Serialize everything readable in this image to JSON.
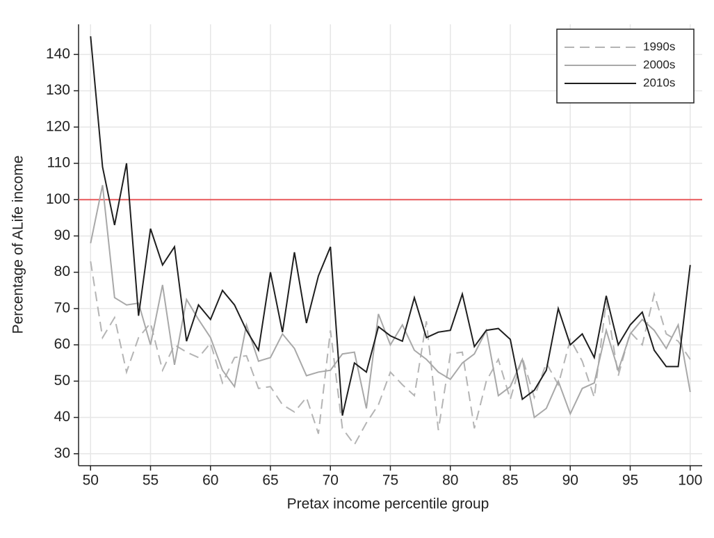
{
  "chart_data": {
    "type": "line",
    "xlabel": "Pretax income percentile group",
    "ylabel": "Percentage of ALife income",
    "x": [
      50,
      51,
      52,
      53,
      54,
      55,
      56,
      57,
      58,
      59,
      60,
      61,
      62,
      63,
      64,
      65,
      66,
      67,
      68,
      69,
      70,
      71,
      72,
      73,
      74,
      75,
      76,
      77,
      78,
      79,
      80,
      81,
      82,
      83,
      84,
      85,
      86,
      87,
      88,
      89,
      90,
      91,
      92,
      93,
      94,
      95,
      96,
      97,
      98,
      99,
      100
    ],
    "series": [
      {
        "name": "1990s",
        "color": "#b4b4b4",
        "style": "dashed",
        "values": [
          83,
          62,
          67.5,
          52.5,
          62,
          66,
          53,
          60,
          58,
          56.5,
          60.5,
          49.5,
          56.5,
          57,
          48,
          48.5,
          43.5,
          41.5,
          45.5,
          35.5,
          64,
          37,
          32.5,
          38.5,
          43.5,
          52.5,
          49,
          46,
          66.5,
          36.5,
          57.5,
          58,
          37,
          50,
          56,
          45,
          56.5,
          45.5,
          55,
          49,
          61.5,
          55.5,
          45.5,
          72,
          51.5,
          63.5,
          60,
          74,
          63,
          61,
          56
        ]
      },
      {
        "name": "2000s",
        "color": "#a8a8a8",
        "style": "solid",
        "values": [
          88,
          104,
          73,
          71,
          71.5,
          60,
          76.5,
          54.5,
          72.5,
          67,
          62,
          53,
          48.5,
          65.5,
          55.5,
          56.5,
          63,
          59,
          51.5,
          52.5,
          53,
          57.5,
          58,
          42.5,
          68.5,
          60,
          65.5,
          58.5,
          56,
          52.5,
          50.5,
          55,
          57.5,
          64,
          46,
          48.5,
          56,
          40,
          42.5,
          50,
          41,
          48,
          49.5,
          64,
          53,
          63,
          67,
          64,
          59,
          65.5,
          47
        ]
      },
      {
        "name": "2010s",
        "color": "#1e1e1e",
        "style": "solid",
        "values": [
          145,
          109,
          93,
          110,
          68,
          92,
          82,
          87,
          61,
          71,
          67,
          75,
          71,
          64,
          58.5,
          80,
          63.5,
          85.5,
          66,
          79,
          87,
          40.5,
          55,
          52.5,
          65,
          62.5,
          61,
          73,
          62,
          63.5,
          64,
          74,
          59.5,
          64,
          64.5,
          61.5,
          45,
          47.5,
          53,
          70,
          60,
          63,
          56.5,
          73.5,
          60,
          65.5,
          69,
          58.5,
          54,
          54,
          82
        ]
      }
    ],
    "xlim": [
      49,
      101
    ],
    "ylim": [
      26.7,
      148.3
    ],
    "xticks": [
      50,
      55,
      60,
      65,
      70,
      75,
      80,
      85,
      90,
      95,
      100
    ],
    "yticks": [
      30,
      40,
      50,
      60,
      70,
      80,
      90,
      100,
      110,
      120,
      130,
      140
    ],
    "hline": {
      "value": 100,
      "color": "#e8585a"
    },
    "grid": true,
    "legend": "top-right"
  }
}
